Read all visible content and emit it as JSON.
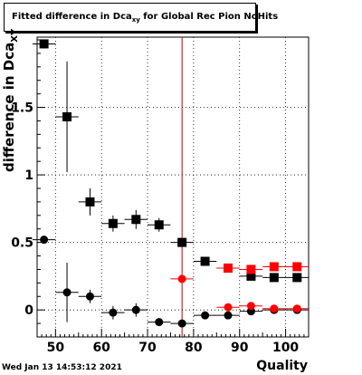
{
  "title": {
    "prefix": "Fitted difference in Dca",
    "subscript": "xy",
    "suffix": " for Global Rec Pion NoHits"
  },
  "footer": "Wed Jan 13 14:53:12 2021",
  "colors": {
    "black_series": "#000000",
    "red_series": "#ff0000",
    "cut_line": "#cc0000",
    "grid": "#000000"
  },
  "chart_data": {
    "type": "scatter",
    "title": "Fitted difference in Dca_xy for Global Rec Pion NoHits",
    "xlabel": "Quality",
    "ylabel": "difference in Dca_XY",
    "ylabel_prefix": "difference in Dca",
    "ylabel_subscript": "XY",
    "xlim": [
      46,
      105
    ],
    "ylim": [
      -0.2,
      2.02
    ],
    "xticks": [
      50,
      60,
      70,
      80,
      90,
      100
    ],
    "yticks": [
      0,
      0.5,
      1,
      1.5
    ],
    "xtick_labels": [
      "50",
      "60",
      "70",
      "80",
      "90",
      "100"
    ],
    "ytick_labels": [
      "0",
      "0.5",
      "1",
      "1.5"
    ],
    "grid": true,
    "vertical_line_x": 77.5,
    "series": [
      {
        "marker": "square",
        "color": "#000000",
        "points": [
          {
            "x": 47.5,
            "y": 1.97,
            "yerr": 0.0
          },
          {
            "x": 52.5,
            "y": 1.43,
            "yerr": 0.41
          },
          {
            "x": 57.5,
            "y": 0.8,
            "yerr": 0.1
          },
          {
            "x": 62.5,
            "y": 0.64,
            "yerr": 0.06
          },
          {
            "x": 67.5,
            "y": 0.67,
            "yerr": 0.07
          },
          {
            "x": 72.5,
            "y": 0.63,
            "yerr": 0.05
          },
          {
            "x": 77.5,
            "y": 0.5,
            "yerr": 0.02
          },
          {
            "x": 82.5,
            "y": 0.36,
            "yerr": 0.02
          },
          {
            "x": 87.5,
            "y": 0.31,
            "yerr": 0.01
          },
          {
            "x": 92.5,
            "y": 0.25,
            "yerr": 0.01
          },
          {
            "x": 97.5,
            "y": 0.24,
            "yerr": 0.01
          },
          {
            "x": 102.5,
            "y": 0.24,
            "yerr": 0.01
          }
        ]
      },
      {
        "marker": "circle",
        "color": "#000000",
        "points": [
          {
            "x": 47.5,
            "y": 0.52,
            "yerr": 0.0
          },
          {
            "x": 52.5,
            "y": 0.13,
            "yerr": 0.22
          },
          {
            "x": 57.5,
            "y": 0.1,
            "yerr": 0.05
          },
          {
            "x": 62.5,
            "y": -0.02,
            "yerr": 0.05
          },
          {
            "x": 67.5,
            "y": 0.0,
            "yerr": 0.05
          },
          {
            "x": 72.5,
            "y": -0.09,
            "yerr": 0.03
          },
          {
            "x": 77.5,
            "y": -0.1,
            "yerr": 0.02
          },
          {
            "x": 82.5,
            "y": -0.04,
            "yerr": 0.01
          },
          {
            "x": 87.5,
            "y": -0.04,
            "yerr": 0.01
          },
          {
            "x": 92.5,
            "y": -0.01,
            "yerr": 0.01
          },
          {
            "x": 97.5,
            "y": 0.0,
            "yerr": 0.01
          },
          {
            "x": 102.5,
            "y": 0.0,
            "yerr": 0.01
          }
        ]
      },
      {
        "marker": "square",
        "color": "#ff0000",
        "points": [
          {
            "x": 87.5,
            "y": 0.31,
            "yerr": 0.02
          },
          {
            "x": 92.5,
            "y": 0.3,
            "yerr": 0.02
          },
          {
            "x": 97.5,
            "y": 0.32,
            "yerr": 0.01
          },
          {
            "x": 102.5,
            "y": 0.32,
            "yerr": 0.01
          }
        ]
      },
      {
        "marker": "circle",
        "color": "#ff0000",
        "points": [
          {
            "x": 77.5,
            "y": 0.23,
            "yerr": 0.0
          },
          {
            "x": 87.5,
            "y": 0.02,
            "yerr": 0.02
          },
          {
            "x": 92.5,
            "y": 0.03,
            "yerr": 0.02
          },
          {
            "x": 97.5,
            "y": 0.01,
            "yerr": 0.01
          },
          {
            "x": 102.5,
            "y": 0.01,
            "yerr": 0.01
          }
        ]
      }
    ]
  }
}
